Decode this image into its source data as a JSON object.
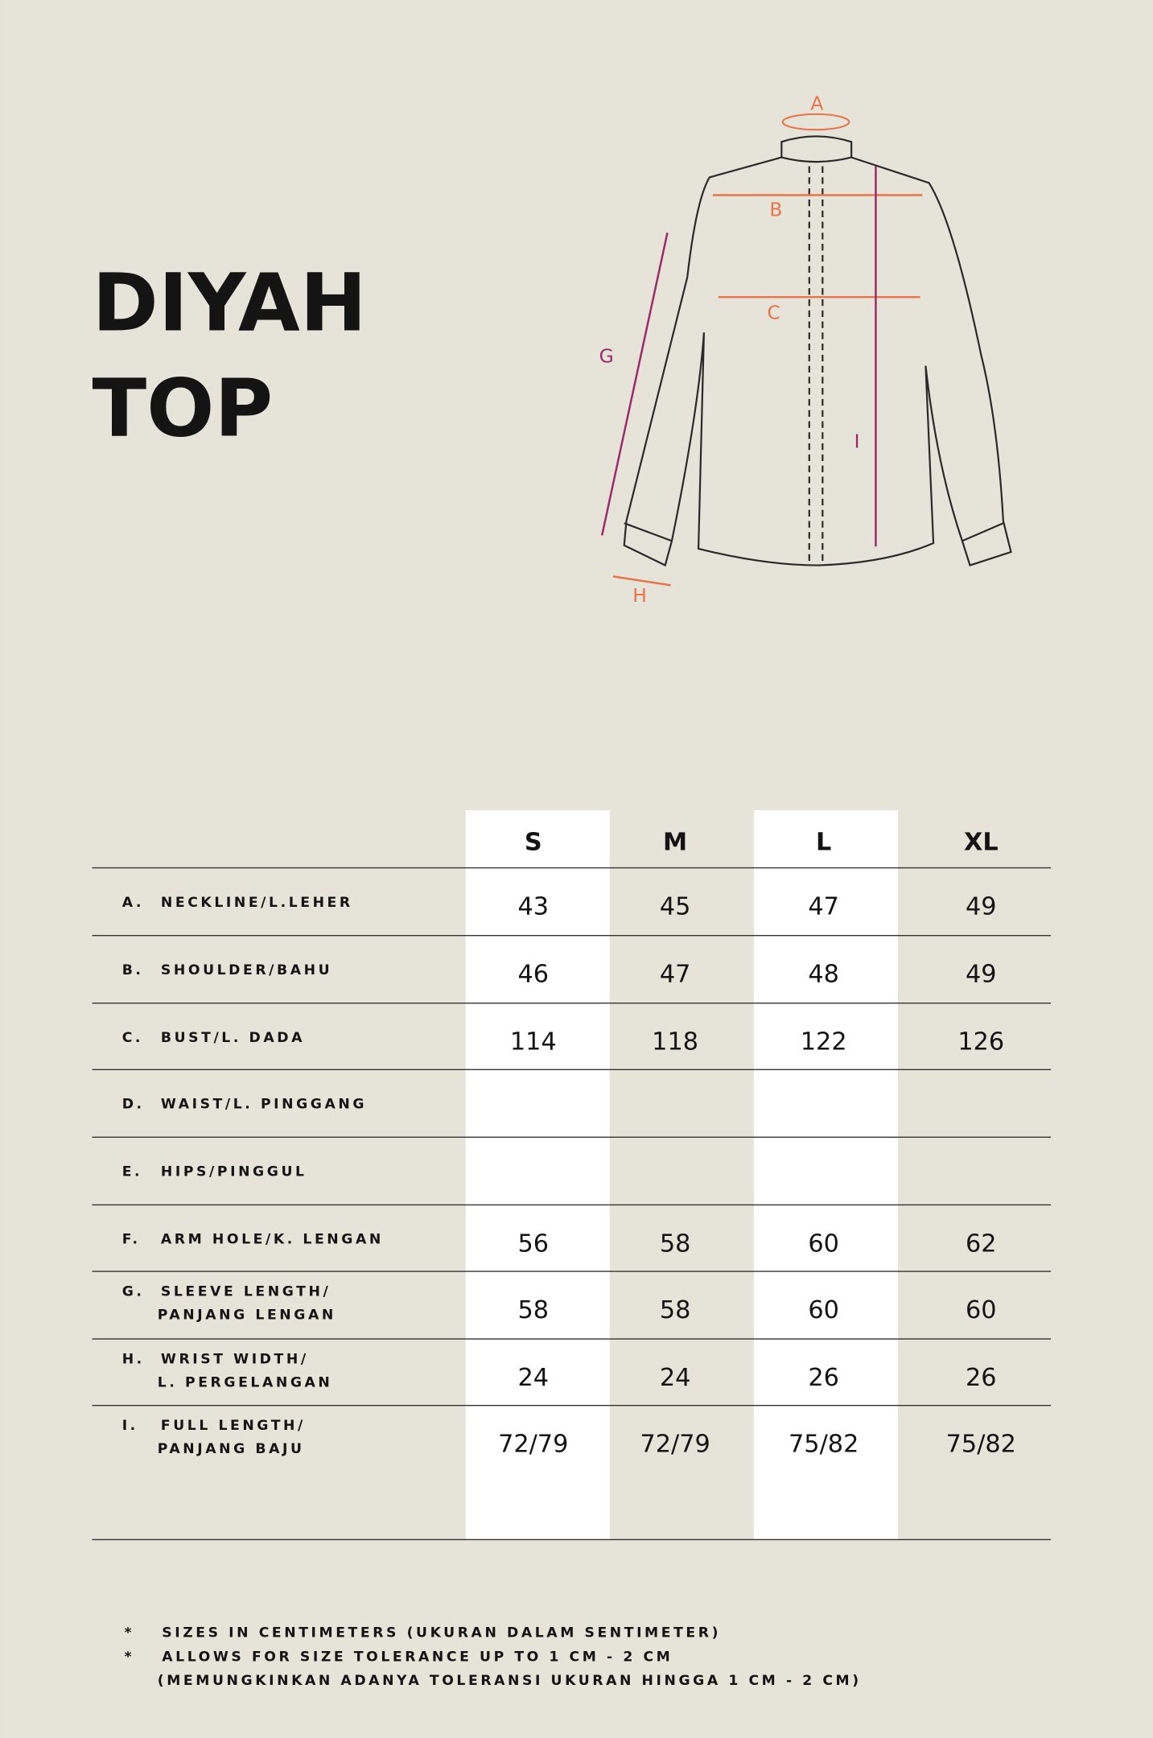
{
  "title": [
    "DIYAH",
    "TOP"
  ],
  "diagram_labels": [
    "A",
    "B",
    "C",
    "G",
    "H",
    "I"
  ],
  "table": {
    "headers": [
      "S",
      "M",
      "L",
      "XL"
    ],
    "rows": [
      {
        "letter": "A.",
        "label": [
          "NECKLINE/L.LEHER"
        ],
        "values": [
          43,
          45,
          47,
          49
        ]
      },
      {
        "letter": "B.",
        "label": [
          "SHOULDER/BAHU"
        ],
        "values": [
          46,
          47,
          48,
          49
        ]
      },
      {
        "letter": "C.",
        "label": [
          "BUST/L. DADA"
        ],
        "values": [
          114,
          118,
          122,
          126
        ]
      },
      {
        "letter": "D.",
        "label": [
          "WAIST/L. PINGGANG"
        ],
        "values": []
      },
      {
        "letter": "E.",
        "label": [
          "HIPS/PINGGUL"
        ],
        "values": []
      },
      {
        "letter": "F.",
        "label": [
          "ARM HOLE/K. LENGAN"
        ],
        "values": [
          56,
          58,
          60,
          62
        ]
      },
      {
        "letter": "G.",
        "label": [
          "SLEEVE LENGTH/",
          "PANJANG LENGAN"
        ],
        "values": [
          58,
          58,
          60,
          60
        ]
      },
      {
        "letter": "H.",
        "label": [
          "WRIST WIDTH/",
          "L. PERGELANGAN"
        ],
        "values": [
          24,
          24,
          26,
          26
        ]
      },
      {
        "letter": "I.",
        "label": [
          "FULL LENGTH/",
          "PANJANG BAJU"
        ],
        "values": [
          "72/79",
          "72/79",
          "75/82",
          "75/82"
        ]
      }
    ]
  },
  "footnotes": [
    {
      "mark": "*",
      "lines": [
        "SIZES IN CENTIMETERS  (UKURAN DALAM SENTIMETER)"
      ]
    },
    {
      "mark": "*",
      "lines": [
        "ALLOWS FOR SIZE TOLERANCE UP TO 1 CM - 2 CM",
        "(MEMUNGKINKAN ADANYA TOLERANSI UKURAN HINGGA 1 CM - 2 CM)"
      ]
    }
  ]
}
